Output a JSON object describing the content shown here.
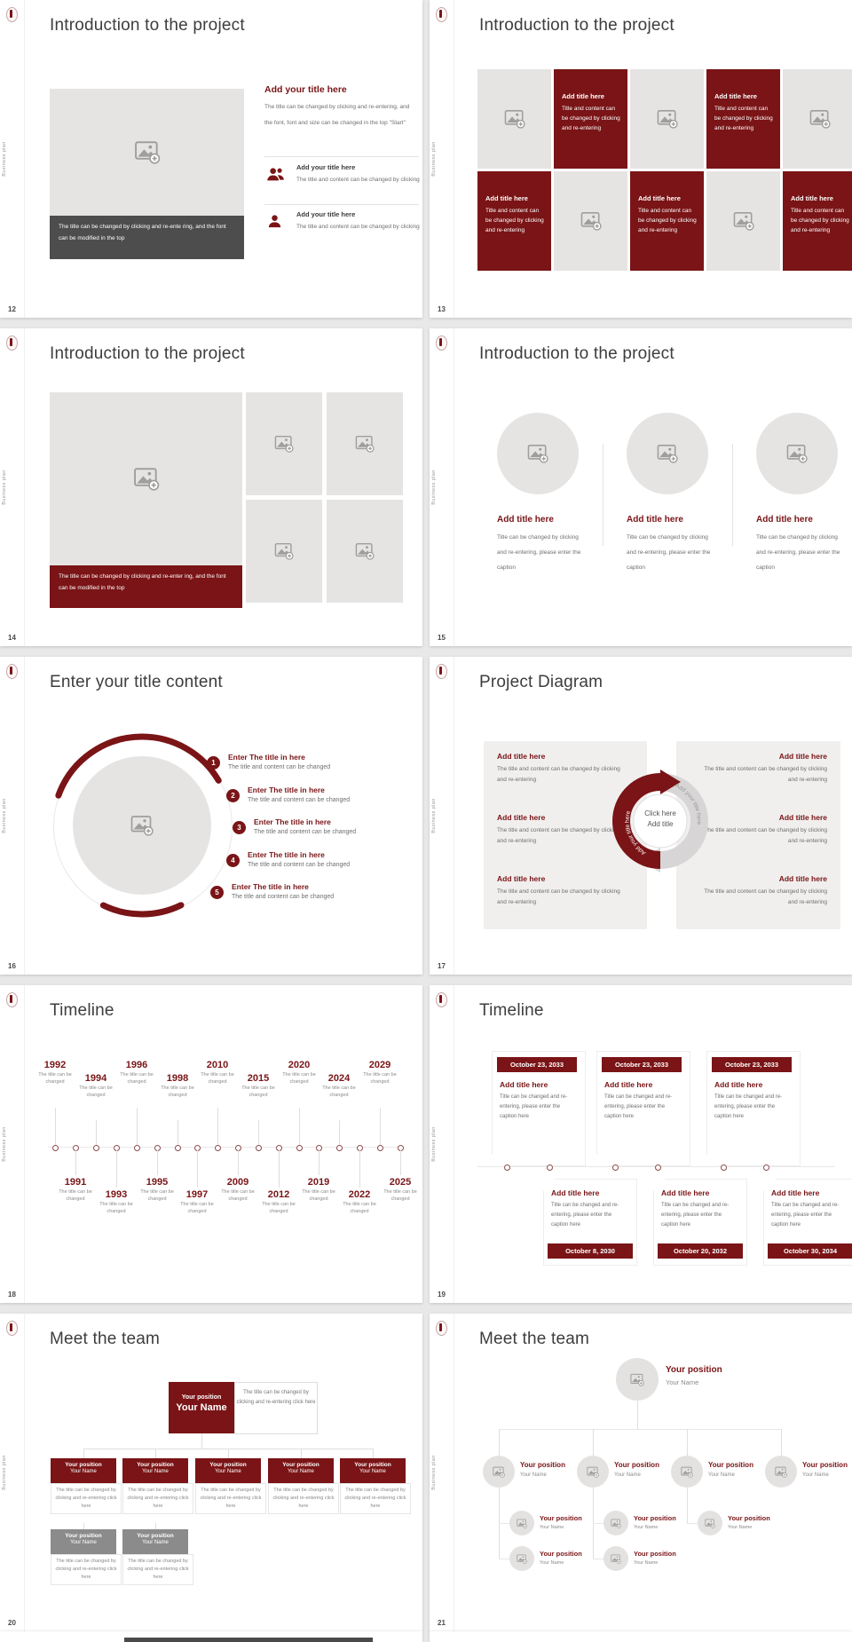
{
  "page": {
    "background": "#e9e8e8"
  },
  "brand": {
    "sidebar_label": "Business plan",
    "logo_icon": "emblem-icon",
    "accent_color": "#7a1416"
  },
  "slides": {
    "s12": {
      "number": "12",
      "title": "Introduction to the project",
      "image_caption": "The title can be changed by clicking and re-ente ring, and the font can be modified in the top",
      "heading": "Add your title here",
      "heading_body": "The title can be changed by clicking and re-entering, and the font, font and size can be changed in the top \"Start\"",
      "item1": {
        "icon": "people-icon",
        "title": "Add your title here",
        "text": "The title and content can be changed by clicking"
      },
      "item2": {
        "icon": "person-icon",
        "title": "Add your title here",
        "text": "The title and content can be changed by clicking"
      }
    },
    "s13": {
      "number": "13",
      "title": "Introduction to the project",
      "cell": {
        "title": "Add title here",
        "text": "Title and content can be changed by clicking and re-entering"
      }
    },
    "s14": {
      "number": "14",
      "title": "Introduction to the project",
      "image_caption": "The title can be changed by clicking and re-enter ing, and the font can be modified in the top"
    },
    "s15": {
      "number": "15",
      "title": "Introduction to the project",
      "column": {
        "title": "Add title here",
        "text": "Title can be changed by clicking and re-entering, please enter the caption"
      }
    },
    "s16": {
      "number": "16",
      "title": "Enter your title content",
      "step_numbers": [
        "1",
        "2",
        "3",
        "4",
        "5"
      ],
      "step": {
        "title": "Enter The title in here",
        "text": "The title and content can be changed"
      }
    },
    "s17": {
      "number": "17",
      "title": "Project Diagram",
      "block": {
        "title": "Add title here",
        "text": "The title and content can be changed by clicking and re-entering"
      },
      "center": {
        "line1": "Click here",
        "line2": "Add title"
      },
      "arc_left_label": "Add your title here",
      "arc_right_label": "Add your title here"
    },
    "s18": {
      "number": "18",
      "title": "Timeline",
      "event_caption": "The title can be changed",
      "top_years": [
        "1992",
        "1994",
        "1996",
        "1998",
        "2010",
        "2015",
        "2020",
        "2024",
        "2029"
      ],
      "bottom_years": [
        "1991",
        "1993",
        "1995",
        "1997",
        "2009",
        "2012",
        "2019",
        "2022",
        "2025"
      ]
    },
    "s19": {
      "number": "19",
      "title": "Timeline",
      "card": {
        "title": "Add title here",
        "text": "Title can be changed and re-entering, please enter the caption here"
      },
      "top_dates": [
        "October 23, 2033",
        "October 23, 2033",
        "October 23, 2033"
      ],
      "bottom_dates": [
        "October 8, 2030",
        "October 20, 2032",
        "October 30, 2034"
      ]
    },
    "s20": {
      "number": "20",
      "title": "Meet the team",
      "position_label": "Your position",
      "name_label": "Your Name",
      "note": "The title can be changed by clicking and re-entering click here"
    },
    "s21": {
      "number": "21",
      "title": "Meet the team",
      "position_label": "Your position",
      "name_label": "Your Name"
    }
  }
}
